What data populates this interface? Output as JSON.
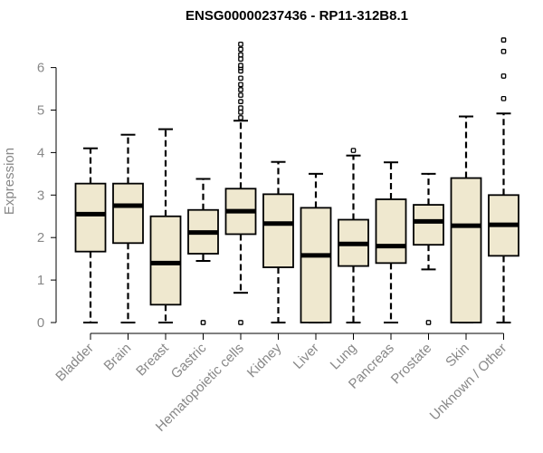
{
  "chart_data": {
    "type": "boxplot",
    "title": "ENSG00000237436 - RP11-312B8.1",
    "xlabel": "",
    "ylabel": "Expression",
    "ylim": [
      0,
      6.7
    ],
    "yticks": [
      0,
      1,
      2,
      3,
      4,
      5,
      6
    ],
    "grid": false,
    "legend": "none",
    "colors": {
      "box_fill": "#EFE8CF",
      "stroke": "#000000",
      "axis_text": "#888888"
    },
    "categories": [
      "Bladder",
      "Brain",
      "Breast",
      "Gastric",
      "Hematopoietic cells",
      "Kidney",
      "Liver",
      "Lung",
      "Pancreas",
      "Prostate",
      "Skin",
      "Unknown / Other"
    ],
    "boxes": [
      {
        "whisker_low": 0.0,
        "q1": 1.67,
        "median": 2.55,
        "q3": 3.27,
        "whisker_high": 4.1,
        "outliers": []
      },
      {
        "whisker_low": 0.0,
        "q1": 1.87,
        "median": 2.75,
        "q3": 3.27,
        "whisker_high": 4.42,
        "outliers": []
      },
      {
        "whisker_low": 0.0,
        "q1": 0.42,
        "median": 1.4,
        "q3": 2.5,
        "whisker_high": 4.55,
        "outliers": []
      },
      {
        "whisker_low": 1.45,
        "q1": 1.62,
        "median": 2.12,
        "q3": 2.65,
        "whisker_high": 3.38,
        "outliers": [
          0.0
        ]
      },
      {
        "whisker_low": 0.7,
        "q1": 2.08,
        "median": 2.62,
        "q3": 3.15,
        "whisker_high": 4.75,
        "outliers": [
          0.0,
          4.82,
          4.95,
          5.05,
          5.2,
          5.35,
          5.48,
          5.6,
          5.75,
          5.92,
          6.0,
          6.05,
          6.2,
          6.3,
          6.43,
          6.55
        ]
      },
      {
        "whisker_low": 0.0,
        "q1": 1.3,
        "median": 2.33,
        "q3": 3.02,
        "whisker_high": 3.78,
        "outliers": []
      },
      {
        "whisker_low": 0.0,
        "q1": 0.0,
        "median": 1.58,
        "q3": 2.7,
        "whisker_high": 3.5,
        "outliers": []
      },
      {
        "whisker_low": 0.0,
        "q1": 1.33,
        "median": 1.85,
        "q3": 2.42,
        "whisker_high": 3.93,
        "outliers": [
          4.05
        ]
      },
      {
        "whisker_low": 0.0,
        "q1": 1.4,
        "median": 1.8,
        "q3": 2.9,
        "whisker_high": 3.77,
        "outliers": []
      },
      {
        "whisker_low": 1.25,
        "q1": 1.83,
        "median": 2.38,
        "q3": 2.77,
        "whisker_high": 3.5,
        "outliers": [
          0.0
        ]
      },
      {
        "whisker_low": 0.0,
        "q1": 0.0,
        "median": 2.28,
        "q3": 3.4,
        "whisker_high": 4.85,
        "outliers": []
      },
      {
        "whisker_low": 0.0,
        "q1": 1.57,
        "median": 2.3,
        "q3": 3.0,
        "whisker_high": 4.92,
        "outliers": [
          5.27,
          5.8,
          6.38,
          6.65
        ]
      }
    ]
  }
}
